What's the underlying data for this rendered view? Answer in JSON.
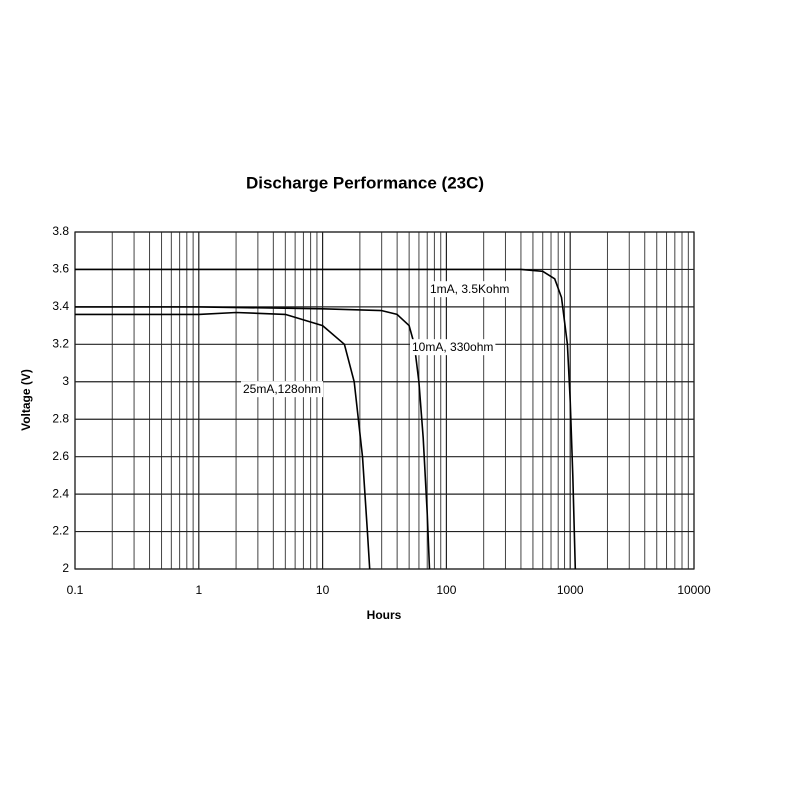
{
  "chart_data": {
    "type": "line",
    "title": "Discharge Performance (23C)",
    "x_label": "Hours",
    "y_label": "Voltage (V)",
    "log_x": true,
    "grid": true,
    "minor_grid": true,
    "xlim": [
      0.1,
      10000
    ],
    "xticks": [
      0.1,
      1,
      10,
      100,
      1000,
      10000
    ],
    "ylim": [
      2,
      3.8
    ],
    "yticks": [
      2,
      2.2,
      2.4,
      2.6,
      2.8,
      3,
      3.2,
      3.4,
      3.6,
      3.8
    ],
    "series": [
      {
        "name": "1mA, 3.5Kohm",
        "color": "#000000",
        "x": [
          0.1,
          1,
          10,
          100,
          400,
          600,
          750,
          850,
          950,
          1000,
          1050,
          1100
        ],
        "values": [
          3.6,
          3.6,
          3.6,
          3.6,
          3.6,
          3.59,
          3.55,
          3.45,
          3.2,
          2.9,
          2.5,
          2.0
        ]
      },
      {
        "name": "10mA, 330ohm",
        "color": "#000000",
        "x": [
          0.1,
          1,
          10,
          30,
          40,
          50,
          55,
          60,
          65,
          70,
          73
        ],
        "values": [
          3.4,
          3.4,
          3.39,
          3.38,
          3.36,
          3.3,
          3.2,
          3.0,
          2.7,
          2.3,
          2.0
        ]
      },
      {
        "name": "25mA,128ohm",
        "color": "#000000",
        "x": [
          0.1,
          1,
          2,
          5,
          10,
          15,
          18,
          21,
          23,
          24
        ],
        "values": [
          3.36,
          3.36,
          3.37,
          3.36,
          3.3,
          3.2,
          3.0,
          2.6,
          2.2,
          2.0
        ]
      }
    ]
  }
}
